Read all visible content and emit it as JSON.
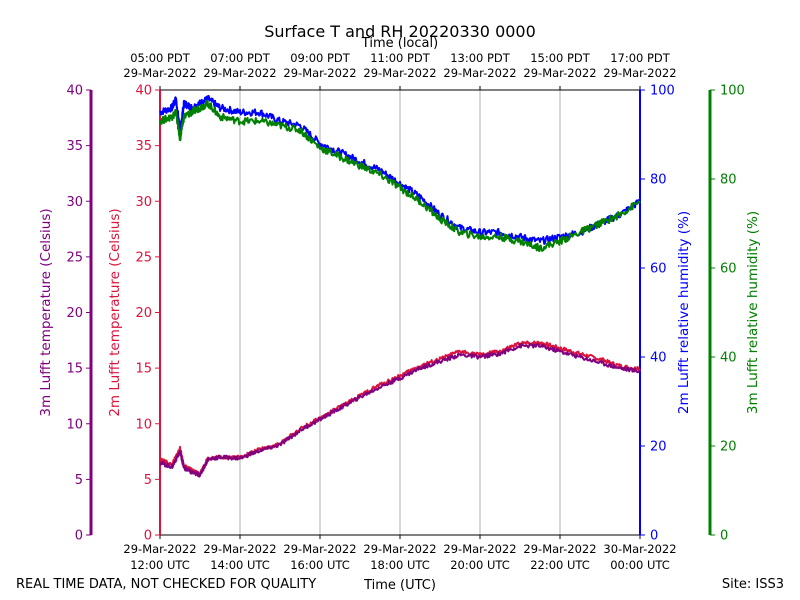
{
  "chart_data": {
    "type": "line",
    "title": "Surface T and RH 20220330 0000",
    "footer_left": "REAL TIME DATA, NOT CHECKED FOR QUALITY",
    "footer_right": "Site: ISS3",
    "x_bottom_label": "Time (UTC)",
    "x_top_label": "Time (local)",
    "x_range_hours_utc": [
      12,
      24
    ],
    "ticks_bottom": [
      {
        "hour": 12,
        "l1": "29-Mar-2022",
        "l2": "12:00 UTC"
      },
      {
        "hour": 14,
        "l1": "29-Mar-2022",
        "l2": "14:00 UTC"
      },
      {
        "hour": 16,
        "l1": "29-Mar-2022",
        "l2": "16:00 UTC"
      },
      {
        "hour": 18,
        "l1": "29-Mar-2022",
        "l2": "18:00 UTC"
      },
      {
        "hour": 20,
        "l1": "29-Mar-2022",
        "l2": "20:00 UTC"
      },
      {
        "hour": 22,
        "l1": "29-Mar-2022",
        "l2": "22:00 UTC"
      },
      {
        "hour": 24,
        "l1": "30-Mar-2022",
        "l2": "00:00 UTC"
      }
    ],
    "ticks_top": [
      {
        "hour": 12,
        "l1": "05:00 PDT",
        "l2": "29-Mar-2022"
      },
      {
        "hour": 14,
        "l1": "07:00 PDT",
        "l2": "29-Mar-2022"
      },
      {
        "hour": 16,
        "l1": "09:00 PDT",
        "l2": "29-Mar-2022"
      },
      {
        "hour": 18,
        "l1": "11:00 PDT",
        "l2": "29-Mar-2022"
      },
      {
        "hour": 20,
        "l1": "13:00 PDT",
        "l2": "29-Mar-2022"
      },
      {
        "hour": 22,
        "l1": "15:00 PDT",
        "l2": "29-Mar-2022"
      },
      {
        "hour": 24,
        "l1": "17:00 PDT",
        "l2": "29-Mar-2022"
      }
    ],
    "axes": {
      "t3m": {
        "label": "3m Lufft temperature (Celsius)",
        "range": [
          0,
          40
        ],
        "ticks": [
          0,
          5,
          10,
          15,
          20,
          25,
          30,
          35,
          40
        ],
        "color": "#800080"
      },
      "t2m": {
        "label": "2m Lufft temperature (Celsius)",
        "range": [
          0,
          40
        ],
        "ticks": [
          0,
          5,
          10,
          15,
          20,
          25,
          30,
          35,
          40
        ],
        "color": "#dc143c"
      },
      "rh2m": {
        "label": "2m Lufft relative humidity (%)",
        "range": [
          0,
          100
        ],
        "ticks": [
          0,
          20,
          40,
          60,
          80,
          100
        ],
        "color": "#0000ff"
      },
      "rh3m": {
        "label": "3m Lufft relative humidity (%)",
        "range": [
          0,
          100
        ],
        "ticks": [
          0,
          20,
          40,
          60,
          80,
          100
        ],
        "color": "#008000"
      }
    },
    "series": [
      {
        "name": "2m RH",
        "axis": "rh2m",
        "color": "#0000ff",
        "x": [
          12.0,
          12.3,
          12.4,
          12.5,
          12.6,
          12.8,
          13.0,
          13.2,
          13.5,
          14.0,
          14.5,
          15.0,
          15.5,
          16.0,
          16.5,
          17.0,
          17.5,
          18.0,
          18.5,
          19.0,
          19.5,
          20.0,
          20.5,
          21.0,
          21.5,
          22.0,
          22.5,
          23.0,
          23.5,
          24.0
        ],
        "y": [
          95,
          96,
          98,
          91,
          97,
          96,
          97,
          98,
          96,
          95,
          95,
          93,
          92,
          88,
          86,
          84,
          82,
          79,
          76,
          72,
          69,
          68,
          68,
          67,
          66,
          67,
          68,
          70,
          72,
          75
        ]
      },
      {
        "name": "3m RH",
        "axis": "rh3m",
        "color": "#008000",
        "x": [
          12.0,
          12.3,
          12.4,
          12.5,
          12.6,
          12.8,
          13.0,
          13.2,
          13.5,
          14.0,
          14.5,
          15.0,
          15.5,
          16.0,
          16.5,
          17.0,
          17.5,
          18.0,
          18.5,
          19.0,
          19.5,
          20.0,
          20.5,
          21.0,
          21.5,
          22.0,
          22.5,
          23.0,
          23.5,
          24.0
        ],
        "y": [
          93,
          94,
          95,
          89,
          94,
          95,
          96,
          97,
          94,
          93,
          93,
          92,
          91,
          87,
          85,
          83,
          81,
          78,
          75,
          71,
          68,
          67,
          67,
          66,
          64.5,
          66,
          68,
          70,
          72,
          75
        ]
      },
      {
        "name": "2m T",
        "axis": "t2m",
        "color": "#dc143c",
        "x": [
          12.0,
          12.3,
          12.5,
          12.6,
          12.8,
          13.0,
          13.2,
          13.5,
          14.0,
          14.5,
          15.0,
          15.5,
          16.0,
          16.5,
          17.0,
          17.5,
          18.0,
          18.5,
          19.0,
          19.5,
          20.0,
          20.5,
          21.0,
          21.5,
          22.0,
          22.5,
          23.0,
          23.5,
          24.0
        ],
        "y": [
          6.8,
          6.3,
          7.8,
          6.2,
          5.8,
          5.5,
          6.9,
          7.0,
          7.0,
          7.7,
          8.2,
          9.5,
          10.5,
          11.5,
          12.5,
          13.5,
          14.3,
          15.2,
          15.8,
          16.5,
          16.2,
          16.5,
          17.2,
          17.3,
          16.8,
          16.3,
          15.8,
          15.2,
          14.9
        ]
      },
      {
        "name": "3m T",
        "axis": "t3m",
        "color": "#800080",
        "x": [
          12.0,
          12.3,
          12.5,
          12.6,
          12.8,
          13.0,
          13.2,
          13.5,
          14.0,
          14.5,
          15.0,
          15.5,
          16.0,
          16.5,
          17.0,
          17.5,
          18.0,
          18.5,
          19.0,
          19.5,
          20.0,
          20.5,
          21.0,
          21.5,
          22.0,
          22.5,
          23.0,
          23.5,
          24.0
        ],
        "y": [
          6.5,
          6.1,
          7.5,
          6.0,
          5.6,
          5.4,
          6.8,
          7.0,
          6.9,
          7.6,
          8.1,
          9.4,
          10.4,
          11.4,
          12.4,
          13.3,
          14.1,
          15.0,
          15.6,
          16.2,
          16.0,
          16.3,
          17.0,
          17.0,
          16.5,
          16.0,
          15.5,
          15.0,
          14.7
        ]
      }
    ]
  }
}
